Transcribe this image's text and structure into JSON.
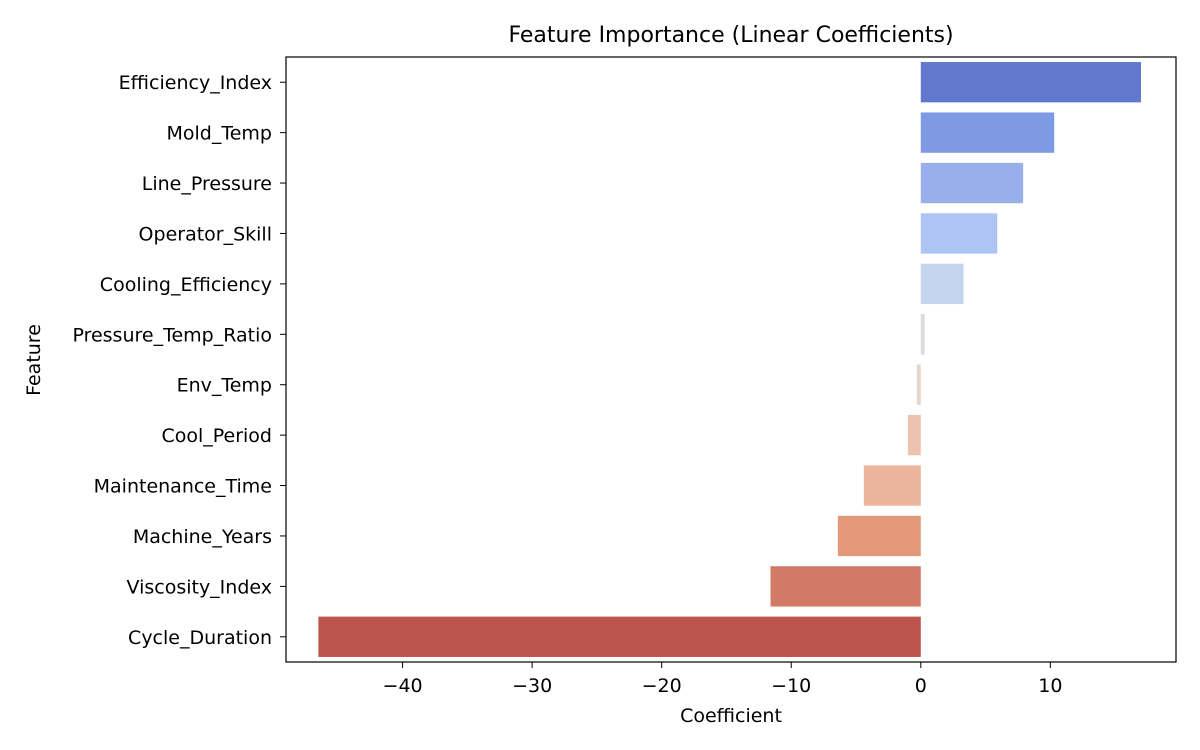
{
  "chart_data": {
    "type": "bar",
    "orientation": "horizontal",
    "title": "Feature Importance (Linear Coefficients)",
    "xlabel": "Coefficient",
    "ylabel": "Feature",
    "categories": [
      "Efficiency_Index",
      "Mold_Temp",
      "Line_Pressure",
      "Operator_Skill",
      "Cooling_Efficiency",
      "Pressure_Temp_Ratio",
      "Env_Temp",
      "Cool_Period",
      "Maintenance_Time",
      "Machine_Years",
      "Viscosity_Index",
      "Cycle_Duration"
    ],
    "values": [
      17.0,
      10.3,
      7.9,
      5.9,
      3.3,
      0.3,
      -0.3,
      -1.0,
      -4.4,
      -6.4,
      -11.6,
      -46.5
    ],
    "colors": [
      "#6178cc",
      "#7e9ae3",
      "#97b0ec",
      "#adc4f5",
      "#c4d3ef",
      "#dcdcdc",
      "#e8d6cc",
      "#edc3af",
      "#ebb49c",
      "#e4987a",
      "#d37a66",
      "#bc544e"
    ],
    "xlim": [
      -49.0,
      19.7
    ],
    "xticks": [
      -40,
      -30,
      -20,
      -10,
      0,
      10
    ],
    "xtick_labels": [
      "−40",
      "−30",
      "−20",
      "−10",
      "0",
      "10"
    ],
    "grid": false,
    "legend": "none"
  }
}
